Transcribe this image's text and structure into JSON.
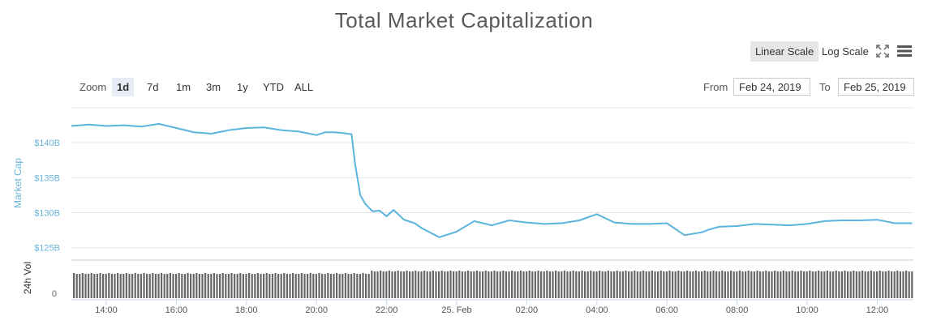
{
  "title": "Total Market Capitalization",
  "scale_buttons": {
    "linear": "Linear Scale",
    "log": "Log Scale"
  },
  "zoom": {
    "label": "Zoom",
    "options": [
      "1d",
      "7d",
      "1m",
      "3m",
      "1y",
      "YTD",
      "ALL"
    ],
    "selected": "1d"
  },
  "range": {
    "from_label": "From",
    "from_value": "Feb 24, 2019",
    "to_label": "To",
    "to_value": "Feb 25, 2019"
  },
  "icons": {
    "fullscreen": "fullscreen-icon",
    "menu": "hamburger-menu-icon"
  },
  "colors": {
    "line": "#5bb4dd",
    "volume": "#666666",
    "grid": "#e6e6e6",
    "axis_text": "#6ab4da"
  },
  "chart_data": {
    "type": "line",
    "title": "Total Market Capitalization",
    "ylabel": "Market Cap",
    "ylim_billions": [
      123,
      145
    ],
    "y_ticks": [
      "$125B",
      "$130B",
      "$135B",
      "$140B"
    ],
    "x_ticks": [
      "14:00",
      "16:00",
      "18:00",
      "20:00",
      "22:00",
      "25. Feb",
      "02:00",
      "04:00",
      "06:00",
      "08:00",
      "10:00",
      "12:00"
    ],
    "series": [
      {
        "name": "Market Cap",
        "unit": "B USD",
        "x_hours": [
          13.0,
          13.5,
          14.0,
          14.5,
          15.0,
          15.5,
          16.0,
          16.5,
          17.0,
          17.5,
          18.0,
          18.5,
          19.0,
          19.5,
          20.0,
          20.25,
          20.5,
          20.75,
          21.0,
          21.1,
          21.25,
          21.4,
          21.6,
          21.8,
          22.0,
          22.2,
          22.5,
          22.8,
          23.0,
          23.5,
          24.0,
          24.5,
          25.0,
          25.5,
          26.0,
          26.5,
          27.0,
          27.5,
          28.0,
          28.5,
          29.0,
          29.5,
          30.0,
          30.5,
          31.0,
          31.2,
          31.5,
          32.0,
          32.5,
          33.0,
          33.5,
          34.0,
          34.5,
          35.0,
          35.5,
          36.0,
          36.5,
          37.0
        ],
        "values": [
          142.4,
          142.6,
          142.4,
          142.5,
          142.3,
          142.7,
          142.1,
          141.5,
          141.3,
          141.8,
          142.1,
          142.2,
          141.8,
          141.6,
          141.1,
          141.5,
          141.5,
          141.4,
          141.2,
          137.0,
          132.5,
          131.2,
          130.2,
          130.3,
          129.5,
          130.4,
          129.0,
          128.5,
          127.8,
          126.5,
          127.3,
          128.8,
          128.2,
          128.9,
          128.6,
          128.4,
          128.5,
          128.9,
          129.8,
          128.6,
          128.4,
          128.4,
          128.5,
          126.8,
          127.2,
          127.6,
          128.0,
          128.1,
          128.4,
          128.3,
          128.2,
          128.4,
          128.8,
          128.9,
          128.9,
          129.0,
          128.5,
          128.5
        ]
      },
      {
        "name": "24h Vol",
        "description": "volume bars, roughly uniform with slight rise after 22:00"
      }
    ],
    "volume_label": "24h Vol",
    "volume_zero_label": "0",
    "grid": true,
    "legend": "none"
  }
}
